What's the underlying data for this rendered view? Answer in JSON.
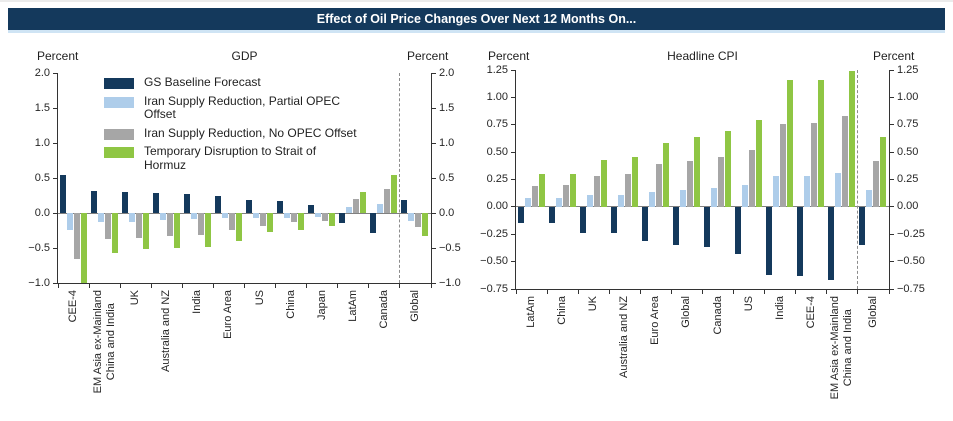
{
  "title": "Effect of Oil Price Changes Over Next 12 Months On...",
  "colors": {
    "navy": "#14395C",
    "light_blue": "#AECDEA",
    "gray": "#A6A6A6",
    "green": "#8FC644",
    "banner_bg": "#14395C",
    "banner_text": "#FFFFFF",
    "banner_underline": "#CFE4F4",
    "axis": "#333333",
    "zero_line": "#808080",
    "separator": "#8C8C8C"
  },
  "legend": {
    "items": [
      {
        "label": "GS Baseline Forecast",
        "color": "navy"
      },
      {
        "label": "Iran Supply Reduction, Partial OPEC\nOffset",
        "color": "light_blue"
      },
      {
        "label": "Iran Supply Reduction, No OPEC Offset",
        "color": "gray"
      },
      {
        "label": "Temporary Disruption to Strait of\nHormuz",
        "color": "green"
      }
    ]
  },
  "chart_data": [
    {
      "type": "bar",
      "title": "GDP",
      "unit_label": "Percent",
      "ylim": [
        -1.0,
        2.0
      ],
      "ytick_step": 0.5,
      "ytick_decimals": 1,
      "grid": false,
      "legend_inside": true,
      "separator_before_index": 11,
      "categories": [
        "CEE-4",
        "EM Asia ex-Mainland\nChina and India",
        "UK",
        "Australia and NZ",
        "India",
        "Euro Area",
        "US",
        "China",
        "Japan",
        "LatAm",
        "Canada",
        "Global"
      ],
      "series": [
        {
          "name": "GS Baseline Forecast",
          "color": "navy",
          "values": [
            0.55,
            0.32,
            0.3,
            0.28,
            0.27,
            0.25,
            0.18,
            0.17,
            0.11,
            -0.14,
            -0.29,
            0.19
          ]
        },
        {
          "name": "Iran Supply Reduction, Partial OPEC Offset",
          "color": "light_blue",
          "values": [
            -0.24,
            -0.13,
            -0.13,
            -0.1,
            -0.08,
            -0.07,
            -0.07,
            -0.07,
            -0.05,
            0.08,
            0.13,
            -0.11
          ]
        },
        {
          "name": "Iran Supply Reduction, No OPEC Offset",
          "color": "gray",
          "values": [
            -0.65,
            -0.37,
            -0.35,
            -0.33,
            -0.31,
            -0.24,
            -0.18,
            -0.13,
            -0.12,
            0.2,
            0.35,
            -0.2
          ]
        },
        {
          "name": "Temporary Disruption to Strait of Hormuz",
          "color": "green",
          "values": [
            -1.0,
            -0.57,
            -0.52,
            -0.5,
            -0.49,
            -0.4,
            -0.27,
            -0.24,
            -0.19,
            0.3,
            0.55,
            -0.33
          ]
        }
      ]
    },
    {
      "type": "bar",
      "title": "Headline CPI",
      "unit_label": "Percent",
      "ylim": [
        -0.75,
        1.25
      ],
      "ytick_step": 0.25,
      "ytick_decimals": 2,
      "grid": false,
      "legend_inside": false,
      "separator_before_index": 11,
      "categories": [
        "LatAm",
        "China",
        "UK",
        "Australia and NZ",
        "Euro Area",
        "Global",
        "Canada",
        "US",
        "India",
        "CEE-4",
        "EM Asia ex-Mainland\nChina and India",
        "Global"
      ],
      "series": [
        {
          "name": "GS Baseline Forecast",
          "color": "navy",
          "values": [
            -0.15,
            -0.15,
            -0.24,
            -0.24,
            -0.31,
            -0.35,
            -0.37,
            -0.43,
            -0.62,
            -0.63,
            -0.67,
            -0.35
          ]
        },
        {
          "name": "Iran Supply Reduction, Partial OPEC Offset",
          "color": "light_blue",
          "values": [
            0.08,
            0.08,
            0.11,
            0.11,
            0.14,
            0.15,
            0.17,
            0.2,
            0.28,
            0.28,
            0.31,
            0.15
          ]
        },
        {
          "name": "Iran Supply Reduction, No OPEC Offset",
          "color": "gray",
          "values": [
            0.19,
            0.2,
            0.28,
            0.3,
            0.39,
            0.42,
            0.46,
            0.52,
            0.76,
            0.77,
            0.83,
            0.42
          ]
        },
        {
          "name": "Temporary Disruption to Strait of Hormuz",
          "color": "green",
          "values": [
            0.3,
            0.3,
            0.43,
            0.46,
            0.58,
            0.64,
            0.69,
            0.79,
            1.16,
            1.16,
            1.24,
            0.64
          ]
        }
      ]
    }
  ]
}
